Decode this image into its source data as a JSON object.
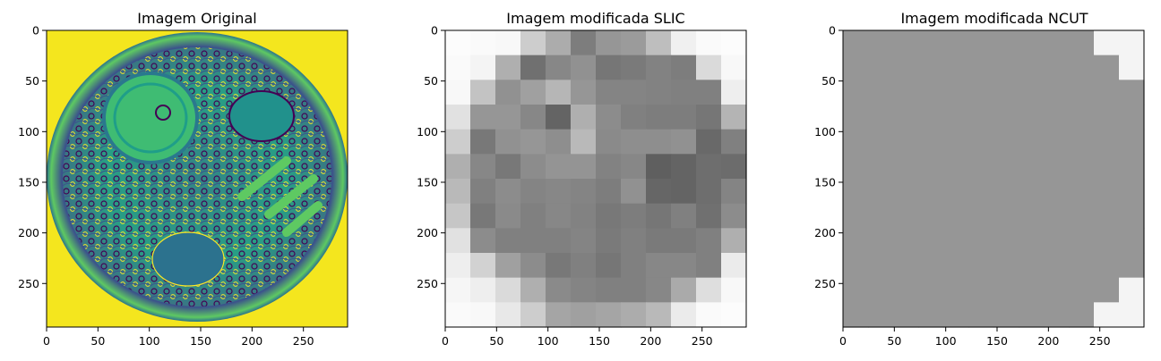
{
  "chart_data": [
    {
      "type": "heatmap",
      "title": "Imagem Original",
      "colormap": "viridis",
      "xlim": [
        0,
        293
      ],
      "ylim": [
        293,
        0
      ],
      "xticks": [
        0,
        50,
        100,
        150,
        200,
        250
      ],
      "yticks": [
        0,
        50,
        100,
        150,
        200,
        250
      ],
      "background_color": "#f4e61e",
      "content": "segmented food plate image (viridis intensities)"
    },
    {
      "type": "heatmap",
      "title": "Imagem modificada SLIC",
      "colormap": "gray",
      "xlim": [
        0,
        293
      ],
      "ylim": [
        293,
        0
      ],
      "xticks": [
        0,
        50,
        100,
        150,
        200,
        250
      ],
      "yticks": [
        0,
        50,
        100,
        150,
        200,
        250
      ],
      "grid_rows": 12,
      "grid_cols": 12,
      "values": [
        [
          252,
          250,
          248,
          205,
          172,
          125,
          150,
          155,
          190,
          240,
          250,
          252
        ],
        [
          250,
          244,
          175,
          112,
          135,
          145,
          118,
          122,
          130,
          125,
          218,
          248
        ],
        [
          248,
          195,
          145,
          160,
          182,
          150,
          132,
          132,
          130,
          128,
          128,
          238
        ],
        [
          225,
          150,
          150,
          135,
          100,
          175,
          140,
          128,
          125,
          125,
          118,
          180
        ],
        [
          205,
          120,
          145,
          150,
          142,
          185,
          138,
          142,
          142,
          145,
          105,
          128
        ],
        [
          175,
          135,
          120,
          140,
          148,
          148,
          130,
          135,
          95,
          100,
          110,
          108
        ],
        [
          185,
          128,
          140,
          132,
          135,
          132,
          125,
          145,
          102,
          100,
          110,
          132
        ],
        [
          198,
          120,
          138,
          128,
          135,
          130,
          120,
          125,
          118,
          128,
          112,
          140
        ],
        [
          225,
          140,
          128,
          128,
          128,
          132,
          122,
          128,
          122,
          122,
          128,
          175
        ],
        [
          238,
          210,
          160,
          140,
          120,
          128,
          118,
          128,
          135,
          135,
          128,
          235
        ],
        [
          246,
          238,
          218,
          175,
          138,
          132,
          128,
          128,
          135,
          170,
          222,
          248
        ],
        [
          250,
          248,
          232,
          205,
          165,
          160,
          165,
          172,
          185,
          235,
          250,
          252
        ]
      ]
    },
    {
      "type": "heatmap",
      "title": "Imagem modificada NCUT",
      "colormap": "gray",
      "xlim": [
        0,
        293
      ],
      "ylim": [
        293,
        0
      ],
      "xticks": [
        0,
        50,
        100,
        150,
        200,
        250
      ],
      "yticks": [
        0,
        50,
        100,
        150,
        200,
        250
      ],
      "grid_rows": 12,
      "grid_cols": 12,
      "values": [
        [
          150,
          150,
          150,
          150,
          150,
          150,
          150,
          150,
          150,
          150,
          244,
          244
        ],
        [
          150,
          150,
          150,
          150,
          150,
          150,
          150,
          150,
          150,
          150,
          150,
          244
        ],
        [
          150,
          150,
          150,
          150,
          150,
          150,
          150,
          150,
          150,
          150,
          150,
          150
        ],
        [
          150,
          150,
          150,
          150,
          150,
          150,
          150,
          150,
          150,
          150,
          150,
          150
        ],
        [
          150,
          150,
          150,
          150,
          150,
          150,
          150,
          150,
          150,
          150,
          150,
          150
        ],
        [
          150,
          150,
          150,
          150,
          150,
          150,
          150,
          150,
          150,
          150,
          150,
          150
        ],
        [
          150,
          150,
          150,
          150,
          150,
          150,
          150,
          150,
          150,
          150,
          150,
          150
        ],
        [
          150,
          150,
          150,
          150,
          150,
          150,
          150,
          150,
          150,
          150,
          150,
          150
        ],
        [
          150,
          150,
          150,
          150,
          150,
          150,
          150,
          150,
          150,
          150,
          150,
          150
        ],
        [
          150,
          150,
          150,
          150,
          150,
          150,
          150,
          150,
          150,
          150,
          150,
          150
        ],
        [
          150,
          150,
          150,
          150,
          150,
          150,
          150,
          150,
          150,
          150,
          150,
          244
        ],
        [
          150,
          150,
          150,
          150,
          150,
          150,
          150,
          150,
          150,
          150,
          244,
          244
        ]
      ]
    }
  ]
}
